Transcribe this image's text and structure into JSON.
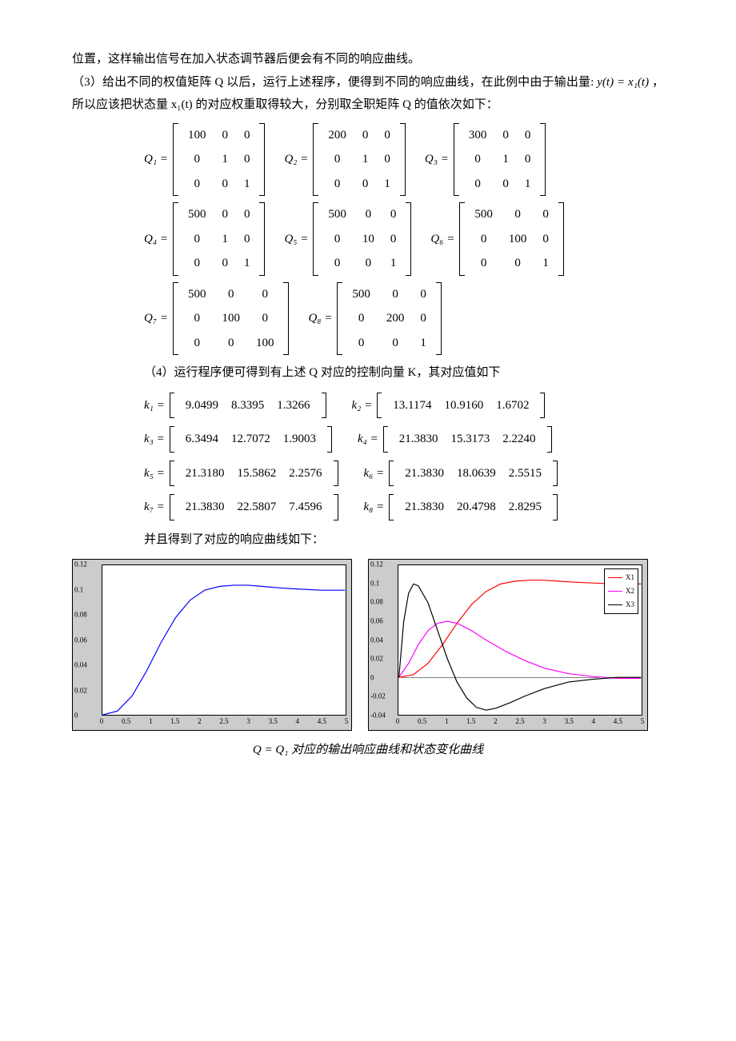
{
  "text": {
    "p1": "位置，这样输出信号在加入状态调节器后便会有不同的响应曲线。",
    "p2a": "（3）给出不同的权值矩阵 Q 以后，运行上述程序，便得到不同的响应曲线，在此例中由于输出量:",
    "p2b": "y(t) = x₁(t)",
    "p2c": "，所以应该把状态量 x₁(t) 的对应权重取得较大，分别取全职矩阵 Q 的值依次如下：",
    "p3": "（4）运行程序便可得到有上述 Q 对应的控制向量 K，其对应值如下",
    "p4": "并且得到了对应的响应曲线如下：",
    "caption": "Q = Q₁ 对应的输出响应曲线和状态变化曲线"
  },
  "Q": [
    {
      "label": "Q₁",
      "rows": [
        [
          "100",
          "0",
          "0"
        ],
        [
          "0",
          "1",
          "0"
        ],
        [
          "0",
          "0",
          "1"
        ]
      ]
    },
    {
      "label": "Q₂",
      "rows": [
        [
          "200",
          "0",
          "0"
        ],
        [
          "0",
          "1",
          "0"
        ],
        [
          "0",
          "0",
          "1"
        ]
      ]
    },
    {
      "label": "Q₃",
      "rows": [
        [
          "300",
          "0",
          "0"
        ],
        [
          "0",
          "1",
          "0"
        ],
        [
          "0",
          "0",
          "1"
        ]
      ]
    },
    {
      "label": "Q₄",
      "rows": [
        [
          "500",
          "0",
          "0"
        ],
        [
          "0",
          "1",
          "0"
        ],
        [
          "0",
          "0",
          "1"
        ]
      ]
    },
    {
      "label": "Q₅",
      "rows": [
        [
          "500",
          "0",
          "0"
        ],
        [
          "0",
          "10",
          "0"
        ],
        [
          "0",
          "0",
          "1"
        ]
      ]
    },
    {
      "label": "Q₆",
      "rows": [
        [
          "500",
          "0",
          "0"
        ],
        [
          "0",
          "100",
          "0"
        ],
        [
          "0",
          "0",
          "1"
        ]
      ]
    },
    {
      "label": "Q₇",
      "rows": [
        [
          "500",
          "0",
          "0"
        ],
        [
          "0",
          "100",
          "0"
        ],
        [
          "0",
          "0",
          "100"
        ]
      ]
    },
    {
      "label": "Q₈",
      "rows": [
        [
          "500",
          "0",
          "0"
        ],
        [
          "0",
          "200",
          "0"
        ],
        [
          "0",
          "0",
          "1"
        ]
      ]
    }
  ],
  "K": [
    {
      "label": "k₁",
      "vals": [
        "9.0499",
        "8.3395",
        "1.3266"
      ]
    },
    {
      "label": "k₂",
      "vals": [
        "13.1174",
        "10.9160",
        "1.6702"
      ]
    },
    {
      "label": "k₃",
      "vals": [
        "6.3494",
        "12.7072",
        "1.9003"
      ]
    },
    {
      "label": "k₄",
      "vals": [
        "21.3830",
        "15.3173",
        "2.2240"
      ]
    },
    {
      "label": "k₅",
      "vals": [
        "21.3180",
        "15.5862",
        "2.2576"
      ]
    },
    {
      "label": "k₆",
      "vals": [
        "21.3830",
        "18.0639",
        "2.5515"
      ]
    },
    {
      "label": "k₇",
      "vals": [
        "21.3830",
        "22.5807",
        "7.4596"
      ]
    },
    {
      "label": "k₈",
      "vals": [
        "21.3830",
        "20.4798",
        "2.8295"
      ]
    }
  ],
  "plot_left": {
    "type": "line",
    "background_color": "#ffffff",
    "frame_color": "#cccccc",
    "axis_color": "#000000",
    "xlim": [
      0,
      5
    ],
    "ylim": [
      0,
      0.12
    ],
    "xticks": [
      0,
      0.5,
      1,
      1.5,
      2,
      2.5,
      3,
      3.5,
      4,
      4.5,
      5
    ],
    "yticks": [
      0,
      0.02,
      0.04,
      0.06,
      0.08,
      0.1,
      0.12
    ],
    "series": [
      {
        "name": "y",
        "color": "#0000ff",
        "width": 1.2,
        "points": [
          [
            0,
            0
          ],
          [
            0.3,
            0.003
          ],
          [
            0.6,
            0.015
          ],
          [
            0.9,
            0.035
          ],
          [
            1.2,
            0.058
          ],
          [
            1.5,
            0.078
          ],
          [
            1.8,
            0.092
          ],
          [
            2.1,
            0.1
          ],
          [
            2.4,
            0.103
          ],
          [
            2.7,
            0.104
          ],
          [
            3.0,
            0.104
          ],
          [
            3.3,
            0.103
          ],
          [
            3.6,
            0.102
          ],
          [
            4.0,
            0.101
          ],
          [
            4.5,
            0.1
          ],
          [
            5.0,
            0.1
          ]
        ]
      }
    ]
  },
  "plot_right": {
    "type": "line",
    "background_color": "#ffffff",
    "frame_color": "#cccccc",
    "axis_color": "#000000",
    "xlim": [
      0,
      5
    ],
    "ylim": [
      -0.04,
      0.12
    ],
    "xticks": [
      0,
      0.5,
      1,
      1.5,
      2,
      2.5,
      3,
      3.5,
      4,
      4.5,
      5
    ],
    "yticks": [
      -0.04,
      -0.02,
      0,
      0.02,
      0.04,
      0.06,
      0.08,
      0.1,
      0.12
    ],
    "legend": [
      "X1",
      "X2",
      "X3"
    ],
    "series": [
      {
        "name": "X1",
        "color": "#ff0000",
        "width": 1.2,
        "points": [
          [
            0,
            0
          ],
          [
            0.3,
            0.003
          ],
          [
            0.6,
            0.015
          ],
          [
            0.9,
            0.035
          ],
          [
            1.2,
            0.058
          ],
          [
            1.5,
            0.078
          ],
          [
            1.8,
            0.092
          ],
          [
            2.1,
            0.1
          ],
          [
            2.4,
            0.103
          ],
          [
            2.7,
            0.104
          ],
          [
            3.0,
            0.104
          ],
          [
            3.3,
            0.103
          ],
          [
            3.6,
            0.102
          ],
          [
            4.0,
            0.101
          ],
          [
            4.5,
            0.1
          ],
          [
            5.0,
            0.1
          ]
        ]
      },
      {
        "name": "X2",
        "color": "#ff00ff",
        "width": 1.2,
        "points": [
          [
            0,
            0
          ],
          [
            0.2,
            0.015
          ],
          [
            0.4,
            0.035
          ],
          [
            0.6,
            0.05
          ],
          [
            0.8,
            0.058
          ],
          [
            1.0,
            0.06
          ],
          [
            1.2,
            0.058
          ],
          [
            1.5,
            0.05
          ],
          [
            1.8,
            0.04
          ],
          [
            2.2,
            0.028
          ],
          [
            2.6,
            0.018
          ],
          [
            3.0,
            0.01
          ],
          [
            3.5,
            0.004
          ],
          [
            4.0,
            0.001
          ],
          [
            4.5,
            -0.001
          ],
          [
            5.0,
            -0.001
          ]
        ]
      },
      {
        "name": "X3",
        "color": "#000000",
        "width": 1.2,
        "points": [
          [
            0,
            0
          ],
          [
            0.1,
            0.06
          ],
          [
            0.2,
            0.09
          ],
          [
            0.3,
            0.1
          ],
          [
            0.4,
            0.098
          ],
          [
            0.6,
            0.08
          ],
          [
            0.8,
            0.05
          ],
          [
            1.0,
            0.02
          ],
          [
            1.2,
            -0.005
          ],
          [
            1.4,
            -0.022
          ],
          [
            1.6,
            -0.032
          ],
          [
            1.8,
            -0.035
          ],
          [
            2.0,
            -0.033
          ],
          [
            2.3,
            -0.027
          ],
          [
            2.6,
            -0.02
          ],
          [
            3.0,
            -0.012
          ],
          [
            3.5,
            -0.005
          ],
          [
            4.0,
            -0.002
          ],
          [
            4.5,
            0
          ],
          [
            5.0,
            0
          ]
        ]
      }
    ]
  }
}
